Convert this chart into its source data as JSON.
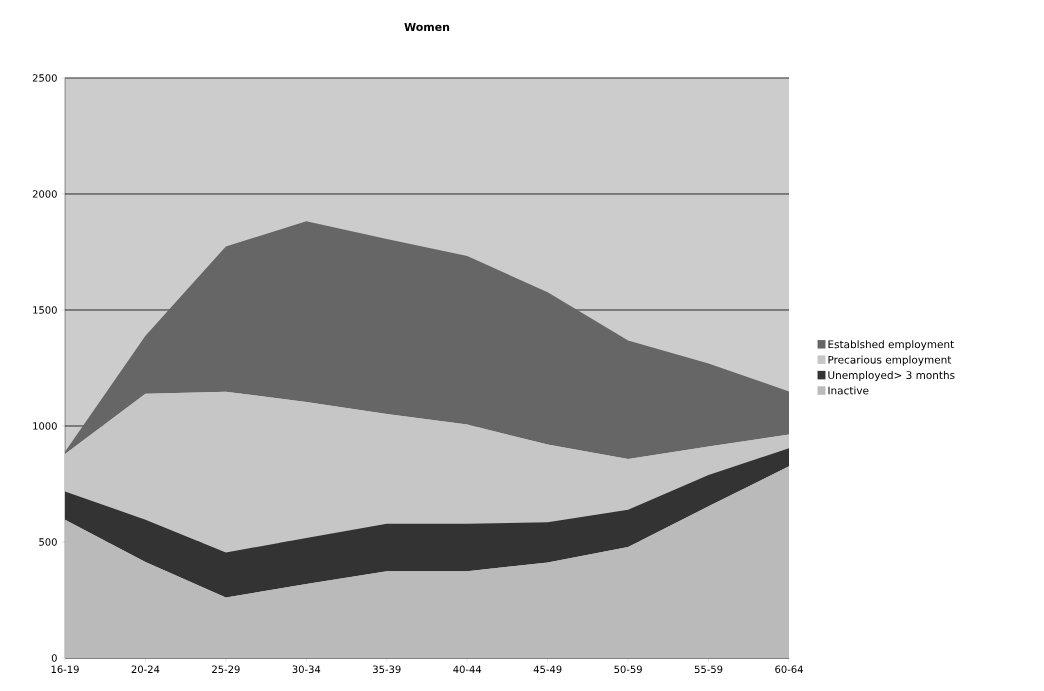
{
  "chart_data": {
    "type": "area",
    "title": "Women",
    "stacked": true,
    "grid": "y",
    "legend": "right",
    "categories": [
      "16-19",
      "20-24",
      "25-29",
      "30-34",
      "35-39",
      "40-44",
      "45-49",
      "50-59",
      "55-59",
      "60-64"
    ],
    "series": [
      {
        "name": "Inactive",
        "color": "#bababa",
        "values": [
          596,
          414,
          261,
          319,
          374,
          374,
          412,
          478,
          654,
          826
        ]
      },
      {
        "name": "Unemployed> 3 months",
        "color": "#333333",
        "values": [
          122,
          182,
          194,
          198,
          205,
          205,
          173,
          161,
          135,
          78
        ]
      },
      {
        "name": "Precarious employment",
        "color": "#c6c6c6",
        "values": [
          161,
          543,
          693,
          586,
          473,
          427,
          335,
          219,
          123,
          59
        ]
      },
      {
        "name": "Establshed employment",
        "color": "#666666",
        "values": [
          10,
          250,
          626,
          779,
          754,
          727,
          656,
          510,
          357,
          186
        ]
      }
    ],
    "ylim": [
      0,
      2500
    ],
    "yticks": [
      0,
      500,
      1000,
      1500,
      2000,
      2500
    ]
  }
}
